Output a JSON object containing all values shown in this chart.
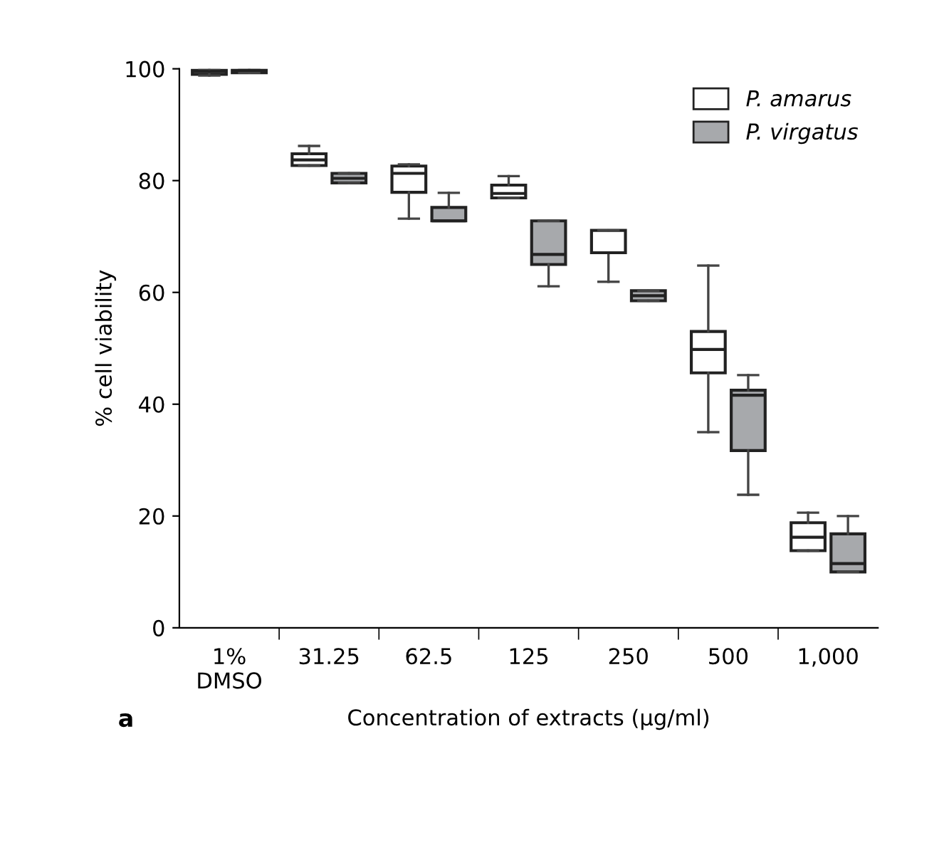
{
  "chart_data": {
    "type": "box",
    "xlabel": "Concentration of extracts (µg/ml)",
    "ylabel": "% cell viability",
    "categories": [
      "1%\nDMSO",
      "31.25",
      "62.5",
      "125",
      "250",
      "500",
      "1,000"
    ],
    "ylim": [
      0,
      100
    ],
    "yticks": [
      0,
      20,
      40,
      60,
      80,
      100
    ],
    "grid": false,
    "legend": "top right",
    "annotations": [
      "a"
    ],
    "series": [
      {
        "name": "P. amarus",
        "color": "#ffffff",
        "boxes": [
          {
            "low": 98.8,
            "q1": 99,
            "median": 99.5,
            "q3": 99.8,
            "high": 100
          },
          {
            "low": 82.7,
            "q1": 82.7,
            "median": 83.7,
            "q3": 84.8,
            "high": 86.2
          },
          {
            "low": 73.2,
            "q1": 77.9,
            "median": 81.3,
            "q3": 82.6,
            "high": 82.9
          },
          {
            "low": 76.9,
            "q1": 76.9,
            "median": 77.7,
            "q3": 79.2,
            "high": 80.8
          },
          {
            "low": 61.9,
            "q1": 67.1,
            "median": 67.1,
            "q3": 71.1,
            "high": 71.1
          },
          {
            "low": 35,
            "q1": 45.6,
            "median": 49.8,
            "q3": 53,
            "high": 64.8
          },
          {
            "low": 13.8,
            "q1": 13.8,
            "median": 16.2,
            "q3": 18.8,
            "high": 20.6
          }
        ]
      },
      {
        "name": "P. virgatus",
        "color": "#a7a9ac",
        "boxes": [
          {
            "low": 99.3,
            "q1": 99.3,
            "median": 99.7,
            "q3": 100,
            "high": 100
          },
          {
            "low": 79.6,
            "q1": 79.6,
            "median": 80.4,
            "q3": 81.3,
            "high": 81.3
          },
          {
            "low": 72.8,
            "q1": 72.8,
            "median": 72.8,
            "q3": 75.2,
            "high": 77.8
          },
          {
            "low": 61.1,
            "q1": 65,
            "median": 66.8,
            "q3": 72.8,
            "high": 72.8
          },
          {
            "low": 58.5,
            "q1": 58.5,
            "median": 59.4,
            "q3": 60.3,
            "high": 60.3
          },
          {
            "low": 23.8,
            "q1": 31.7,
            "median": 41.6,
            "q3": 42.5,
            "high": 45.2
          },
          {
            "low": 10,
            "q1": 10,
            "median": 11.5,
            "q3": 16.8,
            "high": 20
          }
        ]
      }
    ]
  }
}
